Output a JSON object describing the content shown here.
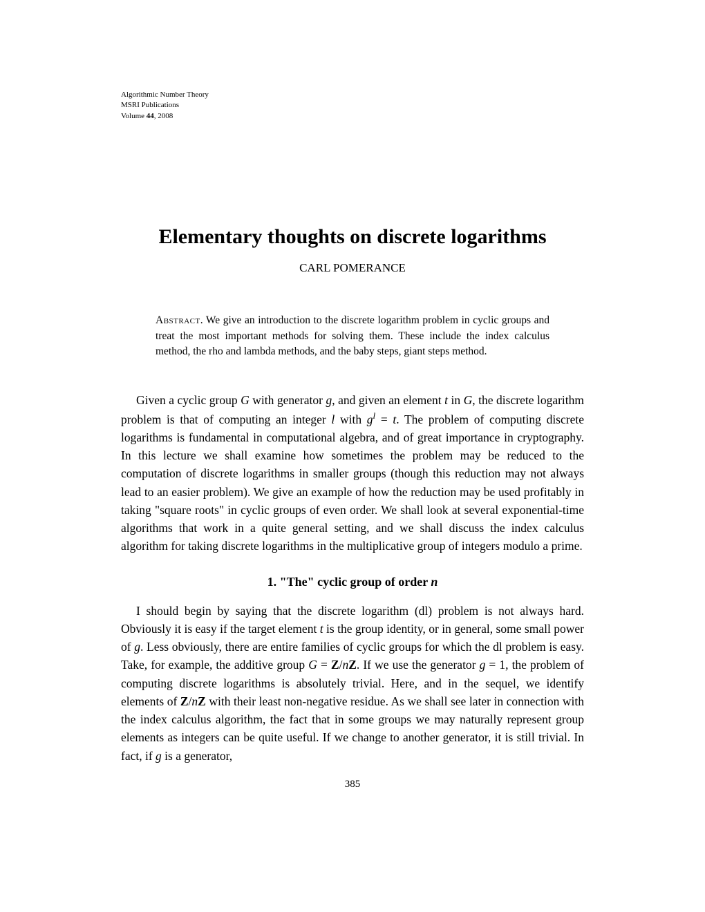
{
  "header": {
    "line1": "Algorithmic Number Theory",
    "line2": "MSRI Publications",
    "line3_prefix": "Volume ",
    "volume": "44",
    "year": ", 2008"
  },
  "title": "Elementary thoughts on discrete logarithms",
  "author": "CARL POMERANCE",
  "abstract": {
    "label": "Abstract",
    "text": ". We give an introduction to the discrete logarithm problem in cyclic groups and treat the most important methods for solving them. These include the index calculus method, the rho and lambda methods, and the baby steps, giant steps method."
  },
  "intro_para": "Given a cyclic group G with generator g, and given an element t in G, the discrete logarithm problem is that of computing an integer l with g^l = t. The problem of computing discrete logarithms is fundamental in computational algebra, and of great importance in cryptography. In this lecture we shall examine how sometimes the problem may be reduced to the computation of discrete logarithms in smaller groups (though this reduction may not always lead to an easier problem). We give an example of how the reduction may be used profitably in taking \"square roots\" in cyclic groups of even order. We shall look at several exponential-time algorithms that work in a quite general setting, and we shall discuss the index calculus algorithm for taking discrete logarithms in the multiplicative group of integers modulo a prime.",
  "section1": {
    "number": "1.",
    "title": " \"The\" cyclic group of order ",
    "var": "n"
  },
  "section1_para": "I should begin by saying that the discrete logarithm (dl) problem is not always hard. Obviously it is easy if the target element t is the group identity, or in general, some small power of g. Less obviously, there are entire families of cyclic groups for which the dl problem is easy. Take, for example, the additive group G = Z/nZ. If we use the generator g = 1, the problem of computing discrete logarithms is absolutely trivial. Here, and in the sequel, we identify elements of Z/nZ with their least non-negative residue. As we shall see later in connection with the index calculus algorithm, the fact that in some groups we may naturally represent group elements as integers can be quite useful. If we change to another generator, it is still trivial. In fact, if g is a generator,",
  "page_number": "385"
}
